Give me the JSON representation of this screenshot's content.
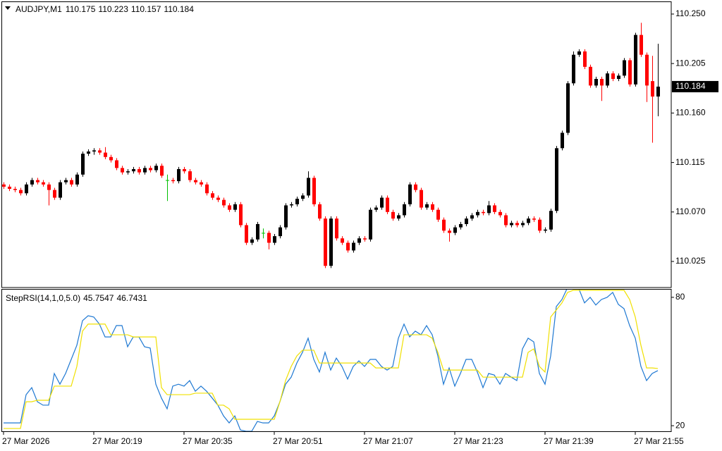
{
  "chart_data": [
    {
      "type": "candlestick",
      "title": "AUDJPY,M1",
      "up_color": "#000000",
      "down_color": "#ff0000",
      "doji_color": "#00c000",
      "grid": false,
      "ylim": [
        110.0013,
        110.2615
      ],
      "yticks": [
        110.025,
        {
          "value": 110.07,
          "label": "110.070"
        },
        110.115,
        {
          "value": 110.16,
          "label": "110.160"
        },
        110.205,
        {
          "value": 110.25,
          "label": "110.250"
        }
      ],
      "xticks": [
        {
          "value": 0,
          "label": "27 Mar 2026"
        },
        {
          "value": 16,
          "label": "27 Mar 20:19"
        },
        {
          "value": 32,
          "label": "27 Mar 20:35"
        },
        {
          "value": 48,
          "label": "27 Mar 20:51"
        },
        {
          "value": 64,
          "label": "27 Mar 21:07"
        },
        {
          "value": 80,
          "label": "27 Mar 21:23"
        },
        {
          "value": 96,
          "label": "27 Mar 21:39"
        },
        {
          "value": 112,
          "label": "27 Mar 21:55"
        }
      ],
      "ohlc": [
        [
          110.095,
          110.097,
          110.091,
          110.093
        ],
        [
          110.093,
          110.095,
          110.089,
          110.091
        ],
        [
          110.091,
          110.093,
          110.088,
          110.09
        ],
        [
          110.09,
          110.092,
          110.085,
          110.087
        ],
        [
          110.087,
          110.097,
          110.085,
          110.095
        ],
        [
          110.095,
          110.101,
          110.093,
          110.099
        ],
        [
          110.099,
          110.101,
          110.095,
          110.097
        ],
        [
          110.097,
          110.099,
          110.093,
          110.095
        ],
        [
          110.095,
          110.097,
          110.076,
          110.09
        ],
        [
          110.09,
          110.092,
          110.081,
          110.083
        ],
        [
          110.083,
          110.099,
          110.081,
          110.097
        ],
        [
          110.097,
          110.101,
          110.095,
          110.099
        ],
        [
          110.099,
          110.101,
          110.093,
          110.095
        ],
        [
          110.095,
          110.106,
          110.093,
          110.104
        ],
        [
          110.104,
          110.125,
          110.102,
          110.123
        ],
        [
          110.123,
          110.127,
          110.121,
          110.125
        ],
        [
          110.125,
          110.128,
          110.122,
          110.126
        ],
        [
          110.126,
          110.128,
          110.122,
          110.124
        ],
        [
          110.124,
          110.129,
          110.118,
          110.12
        ],
        [
          110.12,
          110.122,
          110.115,
          110.117
        ],
        [
          110.117,
          110.119,
          110.108,
          110.11
        ],
        [
          110.11,
          110.112,
          110.104,
          110.106
        ],
        [
          110.106,
          110.109,
          110.104,
          110.107
        ],
        [
          110.107,
          110.111,
          110.105,
          110.109
        ],
        [
          110.109,
          110.111,
          110.104,
          110.106
        ],
        [
          110.106,
          110.112,
          110.104,
          110.11
        ],
        [
          110.11,
          110.112,
          110.106,
          110.108
        ],
        [
          110.108,
          110.114,
          110.106,
          110.112
        ],
        [
          110.112,
          110.114,
          110.101,
          110.103
        ],
        [
          110.099,
          110.104,
          110.08,
          110.099
        ],
        [
          110.099,
          110.101,
          110.096,
          110.098
        ],
        [
          110.098,
          110.111,
          110.096,
          110.109
        ],
        [
          110.109,
          110.111,
          110.105,
          110.107
        ],
        [
          110.107,
          110.109,
          110.097,
          110.099
        ],
        [
          110.099,
          110.101,
          110.095,
          110.097
        ],
        [
          110.097,
          110.099,
          110.093,
          110.095
        ],
        [
          110.095,
          110.097,
          110.085,
          110.087
        ],
        [
          110.087,
          110.089,
          110.081,
          110.083
        ],
        [
          110.083,
          110.085,
          110.079,
          110.081
        ],
        [
          110.081,
          110.083,
          110.074,
          110.076
        ],
        [
          110.076,
          110.078,
          110.07,
          110.072
        ],
        [
          110.072,
          110.079,
          110.07,
          110.077
        ],
        [
          110.077,
          110.079,
          110.056,
          110.058
        ],
        [
          110.058,
          110.06,
          110.04,
          110.042
        ],
        [
          110.042,
          110.047,
          110.04,
          110.045
        ],
        [
          110.045,
          110.061,
          110.043,
          110.059
        ],
        [
          110.051,
          110.055,
          110.046,
          110.051
        ],
        [
          110.051,
          110.053,
          110.036,
          110.042
        ],
        [
          110.042,
          110.05,
          110.04,
          110.048
        ],
        [
          110.048,
          110.058,
          110.046,
          110.056
        ],
        [
          110.056,
          110.078,
          110.054,
          110.076
        ],
        [
          110.076,
          110.079,
          110.074,
          110.077
        ],
        [
          110.077,
          110.084,
          110.075,
          110.082
        ],
        [
          110.082,
          110.087,
          110.08,
          110.085
        ],
        [
          110.085,
          110.107,
          110.083,
          110.101
        ],
        [
          110.101,
          110.103,
          110.075,
          110.077
        ],
        [
          110.077,
          110.079,
          110.062,
          110.064
        ],
        [
          110.064,
          110.066,
          110.019,
          110.021
        ],
        [
          110.021,
          110.066,
          110.019,
          110.064
        ],
        [
          110.064,
          110.066,
          110.044,
          110.046
        ],
        [
          110.046,
          110.048,
          110.04,
          110.042
        ],
        [
          110.042,
          110.044,
          110.033,
          110.035
        ],
        [
          110.035,
          110.044,
          110.033,
          110.042
        ],
        [
          110.042,
          110.048,
          110.04,
          110.046
        ],
        [
          110.046,
          110.048,
          110.043,
          110.045
        ],
        [
          110.045,
          110.074,
          110.043,
          110.072
        ],
        [
          110.072,
          110.076,
          110.07,
          110.074
        ],
        [
          110.074,
          110.085,
          110.072,
          110.083
        ],
        [
          110.083,
          110.085,
          110.068,
          110.07
        ],
        [
          110.07,
          110.072,
          110.062,
          110.064
        ],
        [
          110.064,
          110.069,
          110.062,
          110.067
        ],
        [
          110.067,
          110.079,
          110.065,
          110.077
        ],
        [
          110.077,
          110.097,
          110.075,
          110.095
        ],
        [
          110.095,
          110.097,
          110.088,
          110.09
        ],
        [
          110.09,
          110.092,
          110.072,
          110.074
        ],
        [
          110.074,
          110.079,
          110.072,
          110.077
        ],
        [
          110.077,
          110.079,
          110.07,
          110.072
        ],
        [
          110.072,
          110.074,
          110.061,
          110.063
        ],
        [
          110.063,
          110.065,
          110.051,
          110.053
        ],
        [
          110.053,
          110.055,
          110.043,
          110.051
        ],
        [
          110.051,
          110.058,
          110.049,
          110.056
        ],
        [
          110.056,
          110.061,
          110.054,
          110.059
        ],
        [
          110.059,
          110.066,
          110.057,
          110.064
        ],
        [
          110.064,
          110.069,
          110.062,
          110.067
        ],
        [
          110.067,
          110.072,
          110.065,
          110.07
        ],
        [
          110.07,
          110.072,
          110.067,
          110.069
        ],
        [
          110.069,
          110.08,
          110.067,
          110.076
        ],
        [
          110.076,
          110.078,
          110.068,
          110.07
        ],
        [
          110.07,
          110.072,
          110.065,
          110.067
        ],
        [
          110.067,
          110.069,
          110.056,
          110.058
        ],
        [
          110.058,
          110.062,
          110.056,
          110.06
        ],
        [
          110.06,
          110.062,
          110.056,
          110.058
        ],
        [
          110.058,
          110.062,
          110.056,
          110.06
        ],
        [
          110.06,
          110.066,
          110.058,
          110.064
        ],
        [
          110.064,
          110.066,
          110.061,
          110.063
        ],
        [
          110.063,
          110.065,
          110.051,
          110.053
        ],
        [
          110.053,
          110.056,
          110.051,
          110.054
        ],
        [
          110.054,
          110.073,
          110.052,
          110.071
        ],
        [
          110.071,
          110.13,
          110.069,
          110.128
        ],
        [
          110.128,
          110.144,
          110.126,
          110.142
        ],
        [
          110.142,
          110.189,
          110.14,
          110.187
        ],
        [
          110.187,
          110.216,
          110.185,
          110.213
        ],
        [
          110.213,
          110.218,
          110.211,
          110.216
        ],
        [
          110.216,
          110.218,
          110.2,
          110.202
        ],
        [
          110.202,
          110.204,
          110.183,
          110.185
        ],
        [
          110.185,
          110.193,
          110.183,
          110.191
        ],
        [
          110.191,
          110.193,
          110.171,
          110.185
        ],
        [
          110.185,
          110.198,
          110.183,
          110.196
        ],
        [
          110.196,
          110.198,
          110.189,
          110.191
        ],
        [
          110.191,
          110.196,
          110.189,
          110.194
        ],
        [
          110.194,
          110.21,
          110.192,
          110.208
        ],
        [
          110.208,
          110.21,
          110.184,
          110.186
        ],
        [
          110.186,
          110.233,
          110.184,
          110.231
        ],
        [
          110.231,
          110.242,
          110.211,
          110.213
        ],
        [
          110.213,
          110.215,
          110.17,
          110.185
        ],
        [
          110.189,
          110.212,
          110.133,
          110.175
        ],
        [
          110.175,
          110.223,
          110.157,
          110.184
        ]
      ]
    },
    {
      "type": "line",
      "title": "StepRSI(14,1,0,5.0)",
      "ylim": [
        17.4,
        83.6
      ],
      "yticks": [
        20,
        80
      ],
      "series": [
        {
          "color": "#1e78d2",
          "values": [
            21.3,
            21.3,
            21.3,
            21.3,
            34.5,
            37.8,
            31.2,
            29.6,
            29.6,
            44.4,
            39.4,
            44.4,
            51.0,
            57.6,
            69.1,
            71.4,
            70.8,
            67.5,
            61.5,
            61.5,
            66.8,
            66.8,
            56.9,
            61.5,
            61.5,
            56.9,
            56.3,
            39.4,
            32.9,
            27.9,
            38.5,
            39.4,
            38.5,
            41.1,
            36.1,
            38.5,
            36.1,
            32.9,
            29.6,
            24.6,
            21.3,
            24.6,
            18.0,
            17.4,
            17.4,
            22.0,
            21.3,
            21.3,
            24.6,
            31.2,
            39.4,
            42.7,
            49.3,
            54.3,
            60.9,
            51.0,
            45.1,
            54.3,
            46.0,
            51.6,
            47.7,
            41.8,
            47.7,
            50.3,
            47.7,
            51.0,
            51.0,
            47.7,
            46.0,
            47.7,
            60.9,
            67.5,
            61.5,
            64.2,
            62.5,
            66.8,
            62.5,
            52.6,
            39.4,
            47.0,
            38.5,
            44.4,
            51.0,
            51.0,
            45.1,
            37.8,
            44.4,
            43.7,
            39.4,
            44.4,
            42.7,
            41.1,
            55.9,
            60.9,
            59.2,
            44.4,
            39.4,
            52.6,
            75.7,
            79.0,
            84.6,
            85.6,
            84.0,
            77.4,
            80.0,
            76.4,
            79.0,
            80.0,
            82.3,
            76.7,
            74.7,
            66.8,
            60.9,
            47.7,
            41.1,
            44.4,
            45.7547
          ]
        },
        {
          "color": "#f0e000",
          "values": [
            18.7,
            18.7,
            18.7,
            18.7,
            31.2,
            31.2,
            31.9,
            31.9,
            31.9,
            38.5,
            38.5,
            38.5,
            38.5,
            47.7,
            64.2,
            67.5,
            67.5,
            67.5,
            67.5,
            62.5,
            62.5,
            62.5,
            62.5,
            61.5,
            61.5,
            61.5,
            61.5,
            61.5,
            37.8,
            34.5,
            34.5,
            34.5,
            34.5,
            34.5,
            35.2,
            35.2,
            35.2,
            35.2,
            29.6,
            29.6,
            27.9,
            23.0,
            23.0,
            23.0,
            23.0,
            23.0,
            23.0,
            23.0,
            23.0,
            31.2,
            41.1,
            47.7,
            52.6,
            55.3,
            55.3,
            55.3,
            49.3,
            49.3,
            49.3,
            49.3,
            49.3,
            49.3,
            49.3,
            49.3,
            49.3,
            49.3,
            47.0,
            47.0,
            47.0,
            47.0,
            47.0,
            62.5,
            62.5,
            62.5,
            62.5,
            62.5,
            60.9,
            54.3,
            46.0,
            46.0,
            46.0,
            46.0,
            46.0,
            46.0,
            46.0,
            42.7,
            42.7,
            42.7,
            42.7,
            42.7,
            42.7,
            42.7,
            42.7,
            54.3,
            55.9,
            47.7,
            45.1,
            70.8,
            74.1,
            77.4,
            82.3,
            83.3,
            83.3,
            83.3,
            83.3,
            83.3,
            83.3,
            83.3,
            83.3,
            83.3,
            83.3,
            79.0,
            70.8,
            57.6,
            47.0,
            47.0,
            46.7431
          ]
        }
      ]
    }
  ]
}
